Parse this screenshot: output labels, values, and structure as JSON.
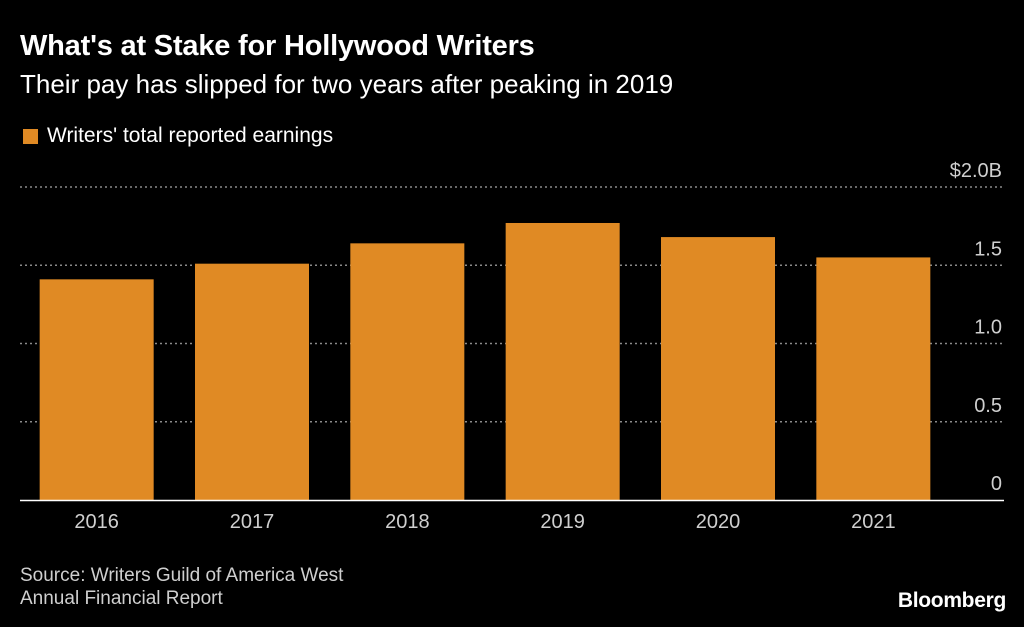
{
  "title": "What's at Stake for Hollywood Writers",
  "subtitle": "Their pay has slipped for two years after peaking in 2019",
  "source": {
    "line1": "Source: Writers Guild of America West",
    "line2": "Annual Financial Report"
  },
  "brand": "Bloomberg",
  "colors": {
    "background": "#000000",
    "bar": "#e08a24",
    "grid": "#8a8a8a",
    "text": "#ffffff",
    "muted_text": "#cfcfcf"
  },
  "chart_data": {
    "type": "bar",
    "title": "What's at Stake for Hollywood Writers",
    "subtitle": "Their pay has slipped for two years after peaking in 2019",
    "categories": [
      "2016",
      "2017",
      "2018",
      "2019",
      "2020",
      "2021"
    ],
    "series": [
      {
        "name": "Writers' total reported earnings",
        "values": [
          1.41,
          1.51,
          1.64,
          1.77,
          1.68,
          1.55
        ]
      }
    ],
    "ylim": [
      0,
      2.0
    ],
    "yticks": [
      0,
      0.5,
      1.0,
      1.5,
      2.0
    ],
    "ytick_labels": [
      "0",
      "0.5",
      "1.0",
      "1.5",
      "$2.0B"
    ],
    "y_axis_position": "right",
    "grid": true,
    "grid_style": "dotted",
    "legend_position": "top-left",
    "xlabel": "",
    "ylabel": ""
  }
}
